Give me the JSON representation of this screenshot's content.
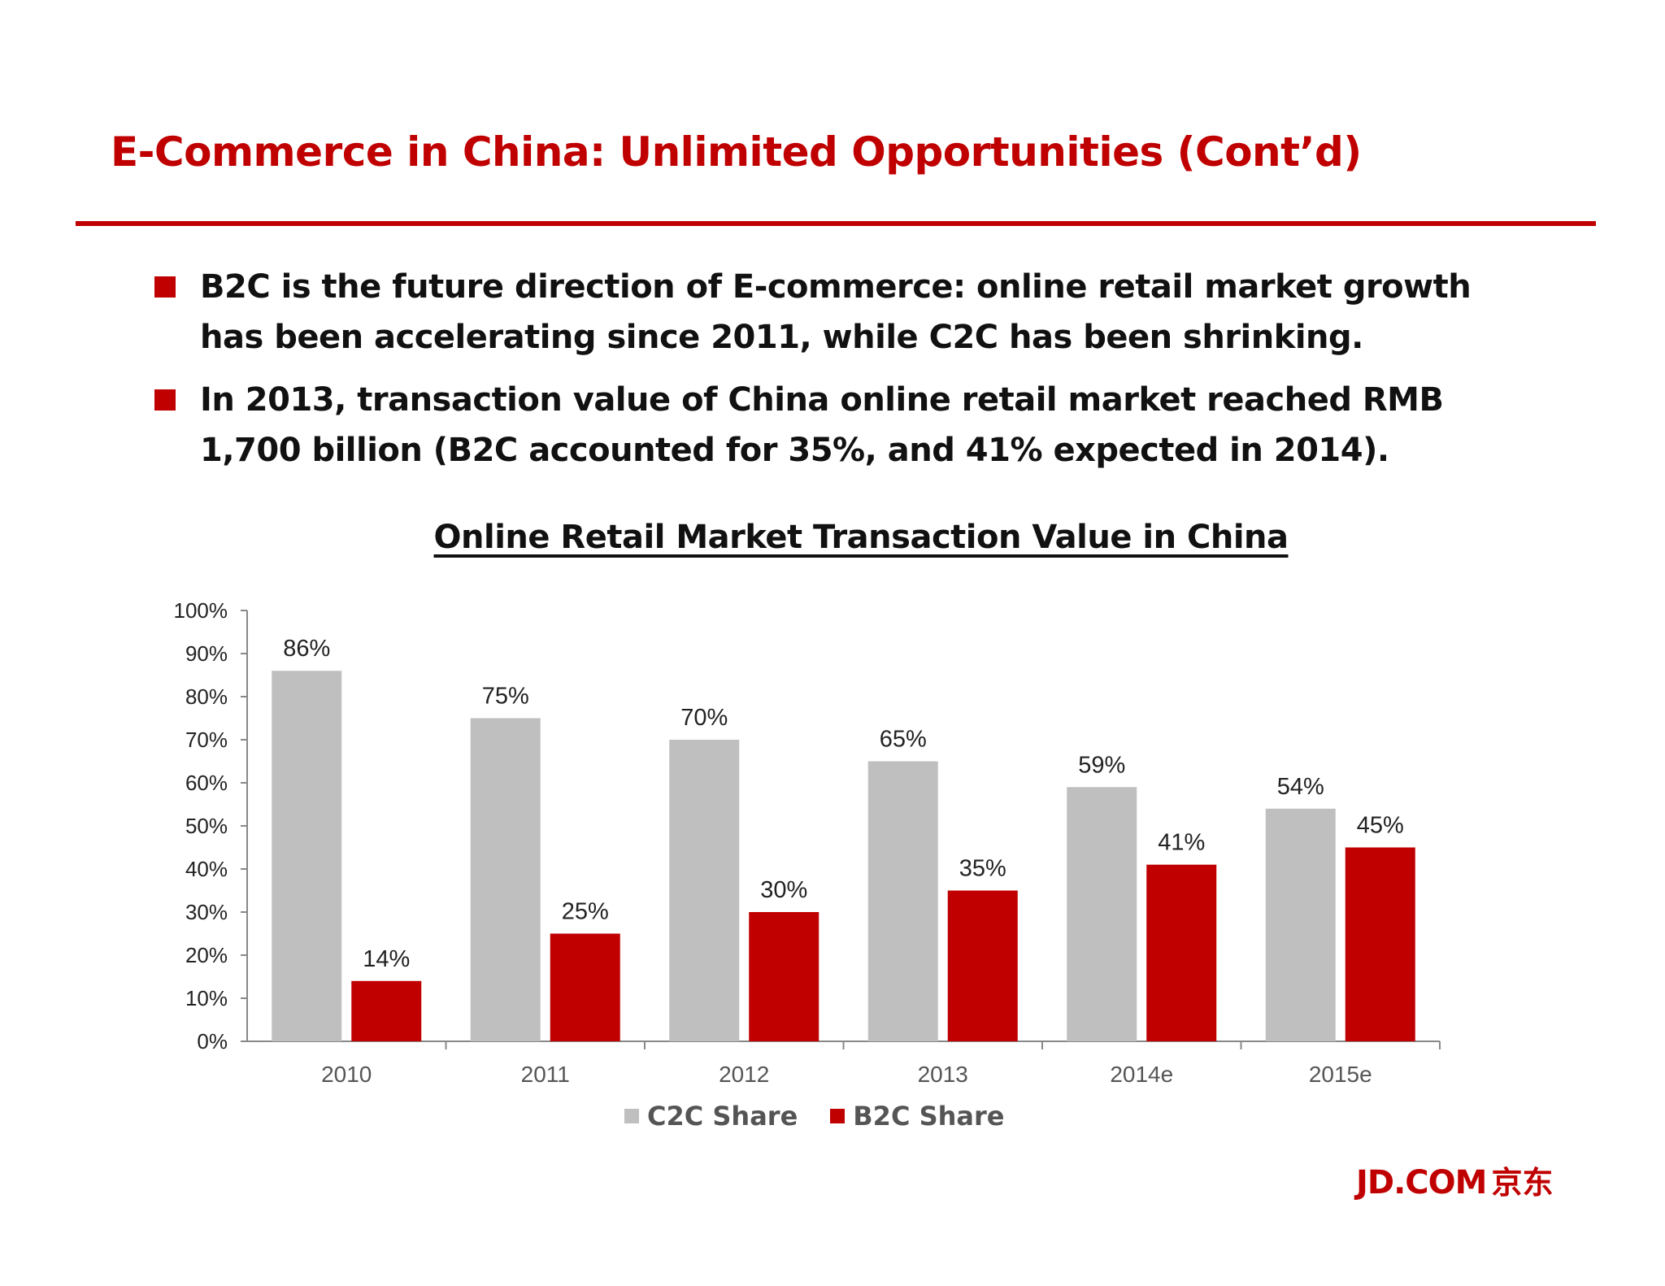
{
  "slide": {
    "title": "E-Commerce in China: Unlimited Opportunities (Cont’d)",
    "bullets": [
      "B2C is the future direction of E-commerce: online retail market growth has been accelerating since 2011, while C2C has been shrinking.",
      "In 2013, transaction value of China online retail market reached RMB 1,700 billion (B2C accounted for 35%, and 41% expected in 2014)."
    ],
    "logo_text": "JD.COM",
    "logo_cn": "京东"
  },
  "colors": {
    "accent": "#c00000",
    "c2c": "#c0bfc0",
    "b2c": "#c00000"
  },
  "chart_data": {
    "type": "bar",
    "title": "Online Retail Market Transaction Value in China",
    "categories": [
      "2010",
      "2011",
      "2012",
      "2013",
      "2014e",
      "2015e"
    ],
    "series": [
      {
        "name": "C2C Share",
        "values": [
          86,
          75,
          70,
          65,
          59,
          54
        ],
        "labels": [
          "86%",
          "75%",
          "70%",
          "65%",
          "59%",
          "54%"
        ]
      },
      {
        "name": "B2C Share",
        "values": [
          14,
          25,
          30,
          35,
          41,
          45
        ],
        "labels": [
          "14%",
          "25%",
          "30%",
          "35%",
          "41%",
          "45%"
        ]
      }
    ],
    "ylim": [
      0,
      100
    ],
    "yticks": [
      "0%",
      "10%",
      "20%",
      "30%",
      "40%",
      "50%",
      "60%",
      "70%",
      "80%",
      "90%",
      "100%"
    ],
    "xlabel": "",
    "ylabel": "",
    "grid": false,
    "legend_position": "bottom"
  }
}
